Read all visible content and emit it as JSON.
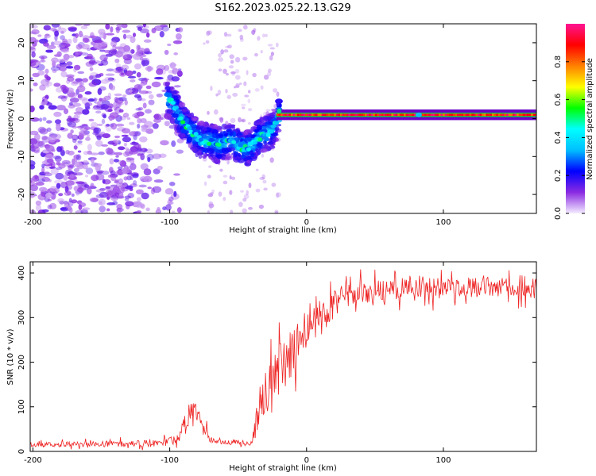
{
  "title": "S162.2023.025.22.13.G29",
  "chart_data": [
    {
      "type": "heatmap",
      "name": "spectrogram",
      "xlabel": "Height of straight line (km)",
      "ylabel": "Frequency (Hz)",
      "xlim": [
        -202,
        168
      ],
      "ylim": [
        -25,
        25
      ],
      "xticks": [
        -200,
        -100,
        0,
        100
      ],
      "yticks": [
        20,
        10,
        0,
        -10,
        -20
      ],
      "colorbar": {
        "label": "Normalized spectral amplitude",
        "range": [
          0,
          1
        ],
        "ticks": [
          "0.0",
          "0.2",
          "0.4",
          "0.6",
          "0.8"
        ],
        "colors": [
          "#f4ecff",
          "#8a2be2",
          "#0000ff",
          "#00bfff",
          "#00ffff",
          "#00ff00",
          "#ffff00",
          "#ff8000",
          "#ff0000",
          "#ff1493"
        ]
      },
      "ridge": {
        "x": [
          -100,
          -95,
          -90,
          -85,
          -80,
          -75,
          -70,
          -65,
          -60,
          -55,
          -50,
          -45,
          -40,
          -35,
          -30,
          -25,
          -20,
          -15,
          -10,
          0,
          20,
          50,
          80,
          100,
          130,
          168
        ],
        "y": [
          5,
          2,
          -1,
          -3,
          -5,
          -6,
          -6,
          -7,
          -6,
          -6,
          -7,
          -8,
          -7,
          -5,
          -4,
          -3,
          1,
          2,
          1.5,
          1,
          1,
          1,
          1,
          1,
          1,
          1
        ]
      }
    },
    {
      "type": "line",
      "name": "snr",
      "xlabel": "Height of straight line (km)",
      "ylabel": "SNR (10 * v/v)",
      "xlim": [
        -202,
        168
      ],
      "ylim": [
        0,
        425
      ],
      "xticks": [
        -200,
        -100,
        0,
        100
      ],
      "yticks": [
        0,
        100,
        200,
        300,
        400
      ],
      "color": "#ee2222",
      "envelope": {
        "x": [
          -202,
          -110,
          -95,
          -88,
          -85,
          -80,
          -75,
          -70,
          -60,
          -50,
          -40,
          -37,
          -35,
          -30,
          -25,
          -20,
          -15,
          -10,
          -5,
          0,
          10,
          20,
          25,
          35,
          50,
          80,
          100,
          130,
          168
        ],
        "y": [
          15,
          18,
          30,
          60,
          95,
          80,
          50,
          25,
          22,
          20,
          20,
          60,
          90,
          120,
          150,
          170,
          200,
          230,
          250,
          270,
          300,
          330,
          345,
          355,
          360,
          370,
          365,
          370,
          365
        ]
      },
      "noise_amplitude": {
        "x": [
          -202,
          -100,
          -95,
          -88,
          -85,
          -80,
          -70,
          -40,
          -37,
          -30,
          -20,
          -10,
          0,
          20,
          30,
          168
        ],
        "y": [
          5,
          8,
          12,
          25,
          30,
          25,
          8,
          5,
          30,
          60,
          70,
          55,
          45,
          35,
          25,
          22
        ]
      }
    }
  ]
}
